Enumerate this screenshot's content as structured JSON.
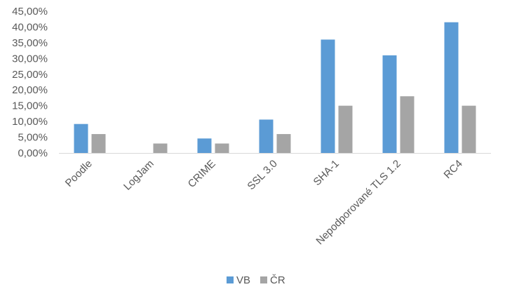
{
  "chart_data": {
    "type": "bar",
    "title": "",
    "xlabel": "",
    "ylabel": "",
    "categories": [
      "Poodle",
      "LogJam",
      "CRIME",
      "SSL 3.0",
      "SHA-1",
      "Nepodporované TLS 1.2",
      "RC4"
    ],
    "series": [
      {
        "name": "VB",
        "color": "#5b9bd5",
        "values": [
          9.2,
          0,
          4.6,
          10.6,
          36.0,
          31.0,
          41.5
        ]
      },
      {
        "name": "ČR",
        "color": "#a5a5a5",
        "values": [
          6.0,
          3.0,
          3.0,
          6.0,
          15.0,
          18.0,
          15.0
        ]
      }
    ],
    "ylim": [
      0,
      45
    ],
    "yticks": [
      "0,00%",
      "5,00%",
      "10,00%",
      "15,00%",
      "20,00%",
      "25,00%",
      "30,00%",
      "35,00%",
      "40,00%",
      "45,00%"
    ],
    "grid": false,
    "legend_position": "bottom"
  }
}
